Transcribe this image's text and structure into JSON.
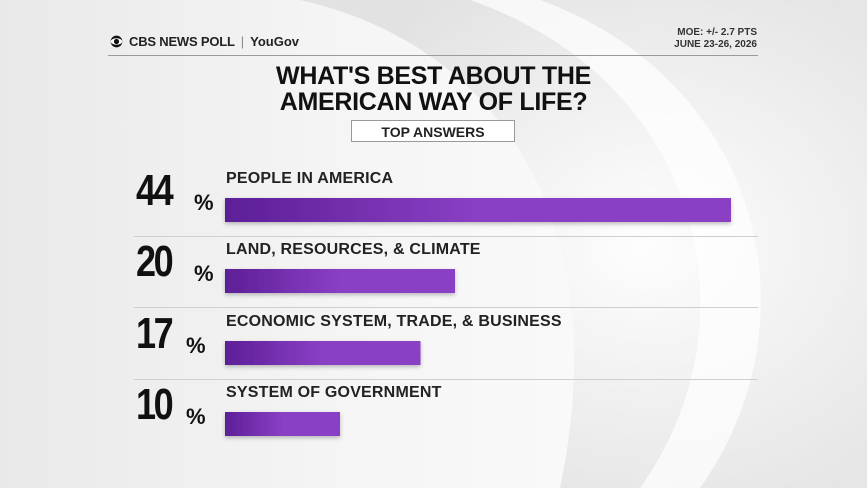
{
  "header": {
    "brand_left": "CBS NEWS POLL",
    "brand_separator": "|",
    "brand_right": "YouGov",
    "moe": "MOE: +/- 2.7 PTS",
    "dates": "JUNE 23-26, 2026"
  },
  "chart_data": {
    "type": "bar",
    "orientation": "horizontal",
    "title_lines": [
      "WHAT'S BEST ABOUT THE",
      "AMERICAN WAY OF LIFE?"
    ],
    "subtitle": "TOP ANSWERS",
    "unit": "%",
    "xlim": [
      0,
      44
    ],
    "categories": [
      "PEOPLE IN AMERICA",
      "LAND, RESOURCES, & CLIMATE",
      "ECONOMIC SYSTEM, TRADE, & BUSINESS",
      "SYSTEM OF GOVERNMENT"
    ],
    "values": [
      44,
      20,
      17,
      10
    ],
    "value_labels": [
      "44",
      "20",
      "17",
      "10"
    ],
    "bar_color": "#8a3fc4",
    "bar_color_dark": "#5c1f97",
    "grid": false,
    "legend": "none"
  }
}
